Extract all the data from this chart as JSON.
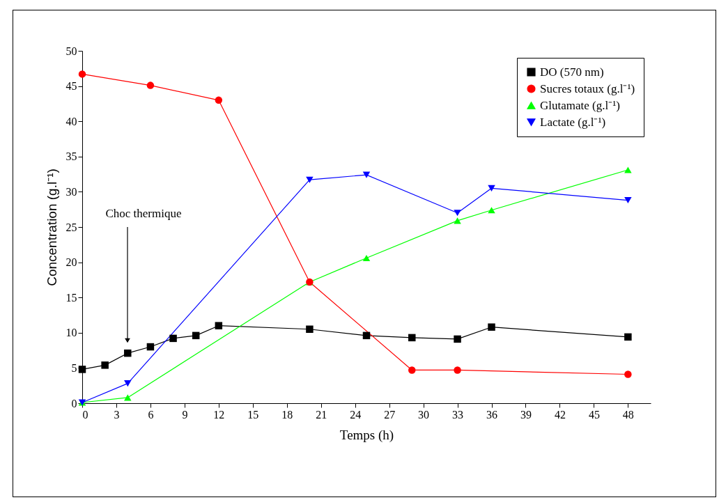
{
  "chart_data": {
    "type": "line",
    "xlabel": "Temps (h)",
    "ylabel": "Concentration (g.l⁻¹)",
    "xlim": [
      0,
      50
    ],
    "xticks": [
      0,
      3,
      6,
      9,
      12,
      15,
      18,
      21,
      24,
      27,
      30,
      33,
      36,
      39,
      42,
      45,
      48
    ],
    "ylim": [
      0,
      50
    ],
    "yticks": [
      0,
      5,
      10,
      15,
      20,
      25,
      30,
      35,
      40,
      45,
      50
    ],
    "grid": false,
    "legend": "top right",
    "annotations": [
      "Choc thermique"
    ],
    "series": [
      {
        "name": "DO (570 nm)",
        "color": "#000000",
        "marker": "square",
        "x": [
          0,
          2,
          4,
          6,
          8,
          10,
          12,
          20,
          25,
          29,
          33,
          36,
          48
        ],
        "values": [
          4.8,
          5.4,
          7.1,
          8.0,
          9.2,
          9.6,
          11.0,
          10.5,
          9.6,
          9.3,
          9.1,
          10.8,
          9.4
        ]
      },
      {
        "name": "Sucres totaux (g.l⁻¹)",
        "color": "#ff0000",
        "marker": "circle",
        "x": [
          0,
          6,
          12,
          20,
          29,
          33,
          48
        ],
        "values": [
          46.7,
          45.1,
          43.0,
          17.2,
          4.7,
          4.7,
          4.1
        ]
      },
      {
        "name": "Glutamate (g.l⁻¹)",
        "color": "#00ff00",
        "marker": "triangle",
        "x": [
          0,
          4,
          20,
          25,
          33,
          36,
          48
        ],
        "values": [
          0.1,
          0.8,
          17.2,
          20.6,
          25.9,
          27.4,
          33.1
        ]
      },
      {
        "name": "Lactate (g.l⁻¹)",
        "color": "#0000ff",
        "marker": "triangle-down",
        "x": [
          0,
          4,
          20,
          25,
          33,
          36,
          48
        ],
        "values": [
          0.1,
          2.8,
          31.7,
          32.4,
          27.0,
          30.5,
          28.8
        ]
      }
    ]
  }
}
